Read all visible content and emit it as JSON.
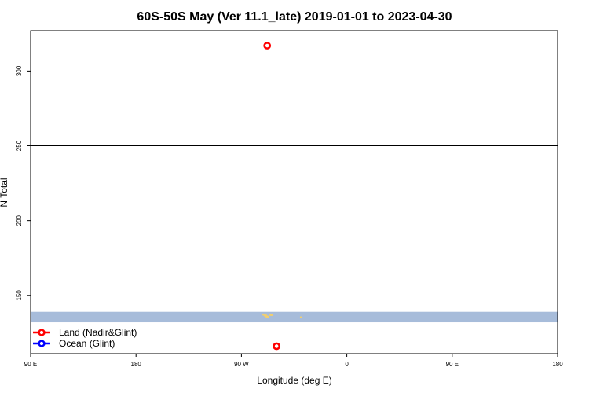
{
  "chart_data": {
    "type": "scatter",
    "title": "60S-50S May (Ver 11.1_late)   2019-01-01 to 2023-04-30",
    "xlabel": "Longitude (deg E)",
    "ylabel": "N Total",
    "x_ticks": [
      {
        "value": 90,
        "label": "90 E"
      },
      {
        "value": 180,
        "label": "180"
      },
      {
        "value": 270,
        "label": "90 W"
      },
      {
        "value": 360,
        "label": "0"
      },
      {
        "value": 450,
        "label": "90 E"
      }
    ],
    "y_ticks": [
      150,
      200,
      250,
      300
    ],
    "xlim": [
      90,
      540
    ],
    "ylim": [
      111,
      327
    ],
    "x_last_tick_label": "180",
    "reference_line_y": 250,
    "map_band": {
      "y_range": [
        132,
        139
      ],
      "color": "#a7bcda",
      "land_color": "#f2cf6e"
    },
    "land_fragments": [
      {
        "x": 288.5,
        "y": 137.2
      },
      {
        "x": 290,
        "y": 136.6
      },
      {
        "x": 291,
        "y": 136.0
      },
      {
        "x": 292,
        "y": 135.6
      },
      {
        "x": 295,
        "y": 136.9
      },
      {
        "x": 321,
        "y": 135.3
      }
    ],
    "series": [
      {
        "name": "Land (Nadir&Glint)",
        "color": "#ff0000",
        "points": [
          {
            "x": 292,
            "y": 317
          },
          {
            "x": 300,
            "y": 116
          }
        ]
      },
      {
        "name": "Ocean (Glint)",
        "color": "#0000ff",
        "points": []
      }
    ],
    "grid": false,
    "legend_position": "bottom-left"
  }
}
